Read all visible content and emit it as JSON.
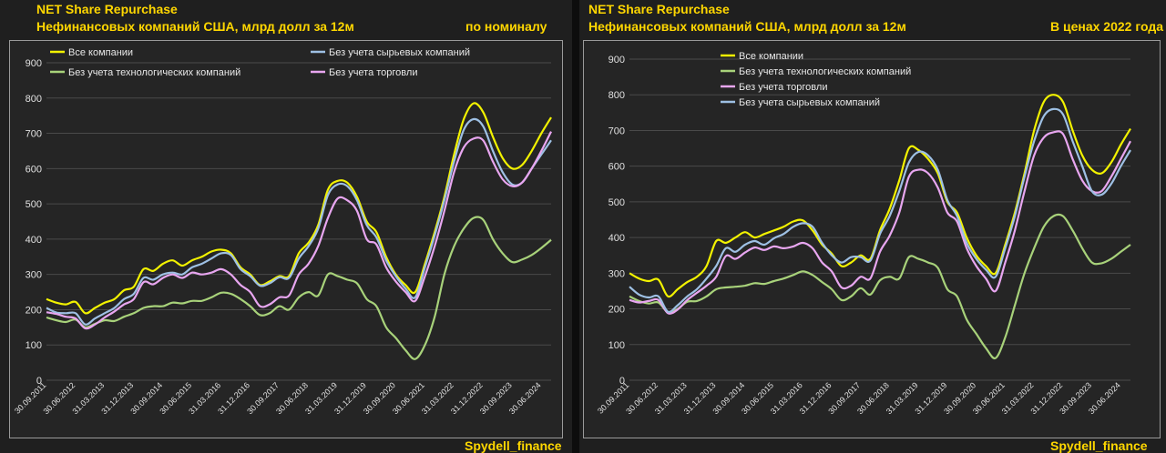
{
  "header": {
    "title": "NET Share Repurchase",
    "subtitle": "Нефинансовых компаний США, млрд долл за 12м"
  },
  "brand": "Spydell_finance",
  "colors": {
    "all": "#f2f200",
    "ex_tech": "#a8d27a",
    "ex_raw": "#9ec0e4",
    "ex_trade": "#e8a6f0"
  },
  "chart_data": [
    {
      "type": "line",
      "panel_label": "по номиналу",
      "ylim": [
        0,
        900
      ],
      "yticks": [
        0,
        100,
        200,
        300,
        400,
        500,
        600,
        700,
        800,
        900
      ],
      "xticks": [
        "30.09.2011",
        "30.06.2012",
        "31.03.2013",
        "31.12.2013",
        "30.09.2014",
        "30.06.2015",
        "31.03.2016",
        "31.12.2016",
        "30.09.2017",
        "30.06.2018",
        "31.03.2019",
        "31.12.2019",
        "30.09.2020",
        "30.06.2021",
        "31.03.2022",
        "31.12.2022",
        "30.09.2023",
        "30.06.2024"
      ],
      "x": [
        "30.09.2011",
        "31.12.2011",
        "31.03.2012",
        "30.06.2012",
        "30.09.2012",
        "31.12.2012",
        "31.03.2013",
        "30.06.2013",
        "30.09.2013",
        "31.12.2013",
        "31.03.2014",
        "30.06.2014",
        "30.09.2014",
        "31.12.2014",
        "31.03.2015",
        "30.06.2015",
        "30.09.2015",
        "31.12.2015",
        "31.03.2016",
        "30.06.2016",
        "30.09.2016",
        "31.12.2016",
        "31.03.2017",
        "30.06.2017",
        "30.09.2017",
        "31.12.2017",
        "31.03.2018",
        "30.06.2018",
        "30.09.2018",
        "31.12.2018",
        "31.03.2019",
        "30.06.2019",
        "30.09.2019",
        "31.12.2019",
        "31.03.2020",
        "30.06.2020",
        "30.09.2020",
        "31.12.2020",
        "31.03.2021",
        "30.06.2021",
        "30.09.2021",
        "31.12.2021",
        "31.03.2022",
        "30.06.2022",
        "30.09.2022",
        "31.12.2022",
        "31.03.2023",
        "30.06.2023",
        "30.09.2023",
        "31.12.2023",
        "31.03.2024",
        "30.06.2024",
        "30.09.2024"
      ],
      "series": [
        {
          "name": "Все компании",
          "key": "all",
          "values": [
            230,
            220,
            215,
            222,
            190,
            205,
            220,
            230,
            255,
            265,
            315,
            310,
            330,
            340,
            325,
            340,
            350,
            365,
            370,
            360,
            320,
            300,
            270,
            280,
            295,
            295,
            360,
            390,
            440,
            540,
            565,
            560,
            520,
            450,
            420,
            350,
            300,
            270,
            250,
            330,
            420,
            520,
            640,
            740,
            785,
            760,
            690,
            630,
            600,
            610,
            650,
            700,
            745
          ]
        },
        {
          "name": "Без учета технологических компаний",
          "key": "ex_tech",
          "values": [
            178,
            170,
            165,
            172,
            150,
            160,
            170,
            168,
            180,
            190,
            205,
            210,
            210,
            220,
            218,
            225,
            225,
            235,
            248,
            245,
            230,
            210,
            185,
            190,
            210,
            200,
            235,
            250,
            240,
            300,
            295,
            285,
            275,
            230,
            210,
            150,
            120,
            85,
            60,
            100,
            180,
            300,
            380,
            430,
            460,
            455,
            400,
            360,
            335,
            342,
            355,
            375,
            398
          ]
        },
        {
          "name": "Без учета сырьевых компаний",
          "key": "ex_raw",
          "values": [
            205,
            192,
            190,
            190,
            158,
            175,
            190,
            205,
            230,
            245,
            290,
            285,
            300,
            305,
            300,
            320,
            330,
            345,
            360,
            355,
            315,
            295,
            268,
            275,
            292,
            290,
            345,
            380,
            430,
            525,
            555,
            550,
            510,
            440,
            405,
            340,
            295,
            260,
            235,
            320,
            410,
            510,
            620,
            710,
            740,
            720,
            650,
            590,
            555,
            560,
            600,
            640,
            680
          ]
        },
        {
          "name": "Без учета торговли",
          "key": "ex_trade",
          "values": [
            193,
            188,
            180,
            175,
            147,
            158,
            178,
            195,
            215,
            230,
            278,
            272,
            290,
            300,
            290,
            305,
            300,
            305,
            315,
            300,
            270,
            250,
            210,
            215,
            235,
            240,
            300,
            330,
            380,
            460,
            515,
            510,
            480,
            400,
            385,
            320,
            280,
            250,
            225,
            295,
            380,
            480,
            590,
            660,
            685,
            680,
            620,
            570,
            550,
            560,
            600,
            650,
            705
          ]
        }
      ],
      "legend": [
        {
          "key": "all",
          "label": "Все компании"
        },
        {
          "key": "ex_raw",
          "label": "Без учета сырьевых компаний"
        },
        {
          "key": "ex_tech",
          "label": "Без учета технологических компаний"
        },
        {
          "key": "ex_trade",
          "label": "Без учета торговли"
        }
      ]
    },
    {
      "type": "line",
      "panel_label": "В ценах 2022 года",
      "ylim": [
        0,
        900
      ],
      "yticks": [
        0,
        100,
        200,
        300,
        400,
        500,
        600,
        700,
        800,
        900
      ],
      "xticks": [
        "30.09.2011",
        "30.06.2012",
        "31.03.2013",
        "31.12.2013",
        "30.09.2014",
        "30.06.2015",
        "31.03.2016",
        "31.12.2016",
        "30.09.2017",
        "30.06.2018",
        "31.03.2019",
        "31.12.2019",
        "30.09.2020",
        "30.06.2021",
        "31.03.2022",
        "31.12.2022",
        "30.09.2023",
        "30.06.2024"
      ],
      "x": [
        "30.09.2011",
        "31.12.2011",
        "31.03.2012",
        "30.06.2012",
        "30.09.2012",
        "31.12.2012",
        "31.03.2013",
        "30.06.2013",
        "30.09.2013",
        "31.12.2013",
        "31.03.2014",
        "30.06.2014",
        "30.09.2014",
        "31.12.2014",
        "31.03.2015",
        "30.06.2015",
        "30.09.2015",
        "31.12.2015",
        "31.03.2016",
        "30.06.2016",
        "30.09.2016",
        "31.12.2016",
        "31.03.2017",
        "30.06.2017",
        "30.09.2017",
        "31.12.2017",
        "31.03.2018",
        "30.06.2018",
        "30.09.2018",
        "31.12.2018",
        "31.03.2019",
        "30.06.2019",
        "30.09.2019",
        "31.12.2019",
        "31.03.2020",
        "30.06.2020",
        "30.09.2020",
        "31.12.2020",
        "31.03.2021",
        "30.06.2021",
        "30.09.2021",
        "31.12.2021",
        "31.03.2022",
        "30.06.2022",
        "30.09.2022",
        "31.12.2022",
        "31.03.2023",
        "30.06.2023",
        "30.09.2023",
        "31.12.2023",
        "31.03.2024",
        "30.06.2024",
        "30.09.2024"
      ],
      "series": [
        {
          "name": "Все компании",
          "key": "all",
          "values": [
            300,
            285,
            278,
            282,
            235,
            255,
            275,
            290,
            320,
            390,
            385,
            400,
            415,
            400,
            410,
            420,
            430,
            445,
            448,
            420,
            380,
            355,
            320,
            330,
            350,
            340,
            420,
            480,
            560,
            650,
            645,
            620,
            580,
            500,
            470,
            400,
            350,
            320,
            300,
            380,
            470,
            580,
            700,
            780,
            800,
            780,
            700,
            630,
            590,
            580,
            610,
            660,
            705
          ]
        },
        {
          "name": "Без учета технологических компаний",
          "key": "ex_tech",
          "values": [
            235,
            222,
            215,
            218,
            190,
            200,
            220,
            222,
            235,
            255,
            260,
            262,
            265,
            272,
            270,
            278,
            285,
            295,
            305,
            295,
            275,
            255,
            225,
            235,
            258,
            240,
            280,
            290,
            285,
            345,
            340,
            330,
            315,
            255,
            235,
            170,
            130,
            90,
            62,
            120,
            210,
            300,
            370,
            430,
            460,
            460,
            420,
            370,
            330,
            328,
            340,
            360,
            380
          ]
        },
        {
          "name": "Без учета торговли",
          "key": "ex_trade",
          "values": [
            225,
            218,
            222,
            225,
            188,
            198,
            225,
            245,
            265,
            290,
            348,
            340,
            358,
            372,
            365,
            375,
            370,
            375,
            385,
            370,
            330,
            305,
            260,
            265,
            290,
            285,
            360,
            405,
            470,
            570,
            590,
            580,
            540,
            470,
            445,
            370,
            320,
            285,
            250,
            330,
            420,
            530,
            630,
            680,
            695,
            690,
            620,
            560,
            530,
            530,
            570,
            620,
            670
          ]
        },
        {
          "name": "Без учета сырьевых компаний",
          "key": "ex_raw",
          "values": [
            262,
            240,
            232,
            235,
            192,
            210,
            235,
            255,
            285,
            320,
            370,
            360,
            380,
            390,
            380,
            398,
            410,
            430,
            440,
            430,
            385,
            350,
            330,
            345,
            345,
            335,
            410,
            460,
            530,
            610,
            640,
            630,
            590,
            505,
            460,
            385,
            340,
            310,
            290,
            370,
            460,
            570,
            670,
            740,
            760,
            745,
            670,
            600,
            530,
            520,
            550,
            600,
            645
          ]
        }
      ],
      "legend": [
        {
          "key": "all",
          "label": "Все компании"
        },
        {
          "key": "ex_tech",
          "label": "Без учета технологических компаний"
        },
        {
          "key": "ex_trade",
          "label": "Без учета торговли"
        },
        {
          "key": "ex_raw",
          "label": "Без учета сырьевых компаний"
        }
      ]
    }
  ]
}
